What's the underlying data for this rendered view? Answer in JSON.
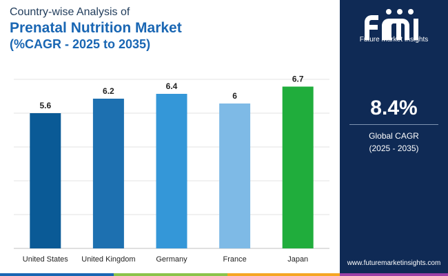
{
  "header": {
    "line1": "Country-wise Analysis of",
    "line2": "Prenatal Nutrition Market",
    "line3": "(%CAGR - 2025 to 2035)"
  },
  "sidebar": {
    "brand_text": "Future Market Insights",
    "cagr_value": "8.4%",
    "cagr_label": "Global CAGR",
    "cagr_period": "(2025 - 2035)",
    "website": "www.futuremarketinsights.com"
  },
  "chart_data": {
    "type": "bar",
    "categories": [
      "United States",
      "United Kingdom",
      "Germany",
      "France",
      "Japan"
    ],
    "values": [
      5.6,
      6.2,
      6.4,
      6,
      6.7
    ],
    "value_labels": [
      "5.6",
      "6.2",
      "6.4",
      "6",
      "6.7"
    ],
    "colors": [
      "#0a5a96",
      "#1d70b0",
      "#3497d8",
      "#7ebae6",
      "#20ad3c"
    ],
    "ylim": [
      0,
      7.0
    ],
    "grid": true,
    "legend": "none"
  },
  "colors": {
    "sidebar_bg": "#0f2a55",
    "title_dark": "#1f3b5a",
    "title_accent": "#1966b3",
    "bottom_stripes": [
      "#1966b3",
      "#8bc34a",
      "#f5a623",
      "#9c3fa6"
    ]
  }
}
